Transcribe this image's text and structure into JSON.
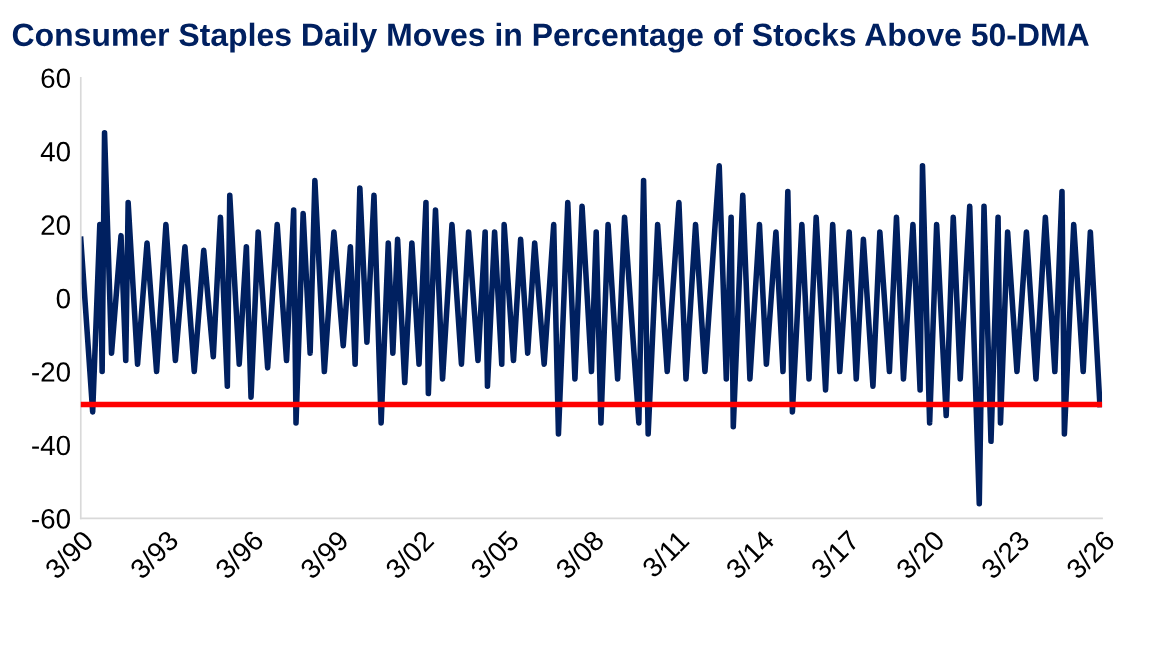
{
  "chart_data": {
    "type": "line",
    "title": "Consumer Staples Daily Moves in Percentage of Stocks Above 50-DMA",
    "x": [
      "1990-03",
      "1990-08",
      "1990-11",
      "1990-12",
      "1991-01",
      "1991-04",
      "1991-08",
      "1991-10",
      "1991-11",
      "1992-03",
      "1992-07",
      "1992-11",
      "1993-03",
      "1993-07",
      "1993-11",
      "1994-03",
      "1994-07",
      "1994-11",
      "1995-02",
      "1995-05",
      "1995-06",
      "1995-10",
      "1996-01",
      "1996-03",
      "1996-06",
      "1996-10",
      "1997-02",
      "1997-06",
      "1997-09",
      "1997-10",
      "1998-01",
      "1998-04",
      "1998-06",
      "1998-10",
      "1999-02",
      "1999-06",
      "1999-09",
      "1999-11",
      "2000-01",
      "2000-04",
      "2000-07",
      "2000-10",
      "2001-01",
      "2001-03",
      "2001-05",
      "2001-08",
      "2001-11",
      "2002-02",
      "2002-05",
      "2002-06",
      "2002-09",
      "2002-12",
      "2003-04",
      "2003-08",
      "2003-11",
      "2004-03",
      "2004-06",
      "2004-07",
      "2004-10",
      "2005-01",
      "2005-02",
      "2005-06",
      "2005-09",
      "2005-12",
      "2006-03",
      "2006-07",
      "2006-11",
      "2007-01",
      "2007-05",
      "2007-08",
      "2007-11",
      "2008-03",
      "2008-05",
      "2008-07",
      "2008-10",
      "2009-02",
      "2009-05",
      "2009-11",
      "2010-01",
      "2010-03",
      "2010-07",
      "2010-11",
      "2011-04",
      "2011-07",
      "2011-11",
      "2012-03",
      "2012-09",
      "2012-12",
      "2013-02",
      "2013-03",
      "2013-07",
      "2013-10",
      "2014-02",
      "2014-05",
      "2014-09",
      "2014-12",
      "2015-02",
      "2015-04",
      "2015-08",
      "2015-11",
      "2016-02",
      "2016-06",
      "2016-09",
      "2016-12",
      "2017-04",
      "2017-07",
      "2017-10",
      "2018-02",
      "2018-05",
      "2018-09",
      "2018-12",
      "2019-03",
      "2019-07",
      "2019-10",
      "2019-11",
      "2020-02",
      "2020-05",
      "2020-09",
      "2020-12",
      "2021-03",
      "2021-07",
      "2021-11",
      "2022-01",
      "2022-04",
      "2022-07",
      "2022-08",
      "2022-11",
      "2023-03",
      "2023-07",
      "2023-11",
      "2024-03",
      "2024-07",
      "2024-10",
      "2024-11",
      "2025-03",
      "2025-07",
      "2025-10",
      "2026-02"
    ],
    "series": [
      {
        "color": "#002060",
        "values": [
          16,
          -31,
          20,
          -20,
          45,
          -15,
          17,
          -17,
          26,
          -18,
          15,
          -20,
          20,
          -17,
          14,
          -20,
          13,
          -16,
          22,
          -24,
          28,
          -18,
          14,
          -27,
          18,
          -19,
          20,
          -17,
          24,
          -34,
          23,
          -15,
          32,
          -20,
          18,
          -13,
          14,
          -18,
          30,
          -12,
          28,
          -34,
          15,
          -15,
          16,
          -23,
          15,
          -18,
          26,
          -26,
          24,
          -22,
          20,
          -18,
          18,
          -17,
          18,
          -24,
          18,
          -18,
          20,
          -17,
          16,
          -15,
          15,
          -18,
          20,
          -37,
          26,
          -22,
          25,
          -20,
          18,
          -34,
          20,
          -22,
          22,
          -34,
          32,
          -37,
          20,
          -20,
          26,
          -22,
          20,
          -20,
          36,
          -22,
          22,
          -35,
          28,
          -22,
          20,
          -18,
          18,
          -20,
          29,
          -31,
          20,
          -22,
          22,
          -25,
          20,
          -20,
          18,
          -22,
          16,
          -24,
          18,
          -20,
          22,
          -22,
          20,
          -25,
          36,
          -34,
          20,
          -32,
          22,
          -22,
          25,
          -56,
          25,
          -39,
          22,
          -34,
          18,
          -20,
          18,
          -22,
          22,
          -20,
          29,
          -37,
          20,
          -20,
          18,
          -29
        ]
      }
    ],
    "xlim": [
      "1990-03",
      "2026-03"
    ],
    "xticks": [
      {
        "value": "1990-03",
        "label": "3/90"
      },
      {
        "value": "1993-03",
        "label": "3/93"
      },
      {
        "value": "1996-03",
        "label": "3/96"
      },
      {
        "value": "1999-03",
        "label": "3/99"
      },
      {
        "value": "2002-03",
        "label": "3/02"
      },
      {
        "value": "2005-03",
        "label": "3/05"
      },
      {
        "value": "2008-03",
        "label": "3/08"
      },
      {
        "value": "2011-03",
        "label": "3/11"
      },
      {
        "value": "2014-03",
        "label": "3/14"
      },
      {
        "value": "2017-03",
        "label": "3/17"
      },
      {
        "value": "2020-03",
        "label": "3/20"
      },
      {
        "value": "2023-03",
        "label": "3/23"
      },
      {
        "value": "2026-03",
        "label": "3/26"
      }
    ],
    "ylim": [
      -60,
      60
    ],
    "yticks": [
      -60,
      -40,
      -20,
      0,
      20,
      40,
      60
    ],
    "ref_lines": [
      {
        "axis": "y",
        "value": -29,
        "color": "#ff0000",
        "line_style": "solid"
      }
    ],
    "grid": false,
    "legend": false,
    "marker": "none",
    "line_style": "solid"
  }
}
